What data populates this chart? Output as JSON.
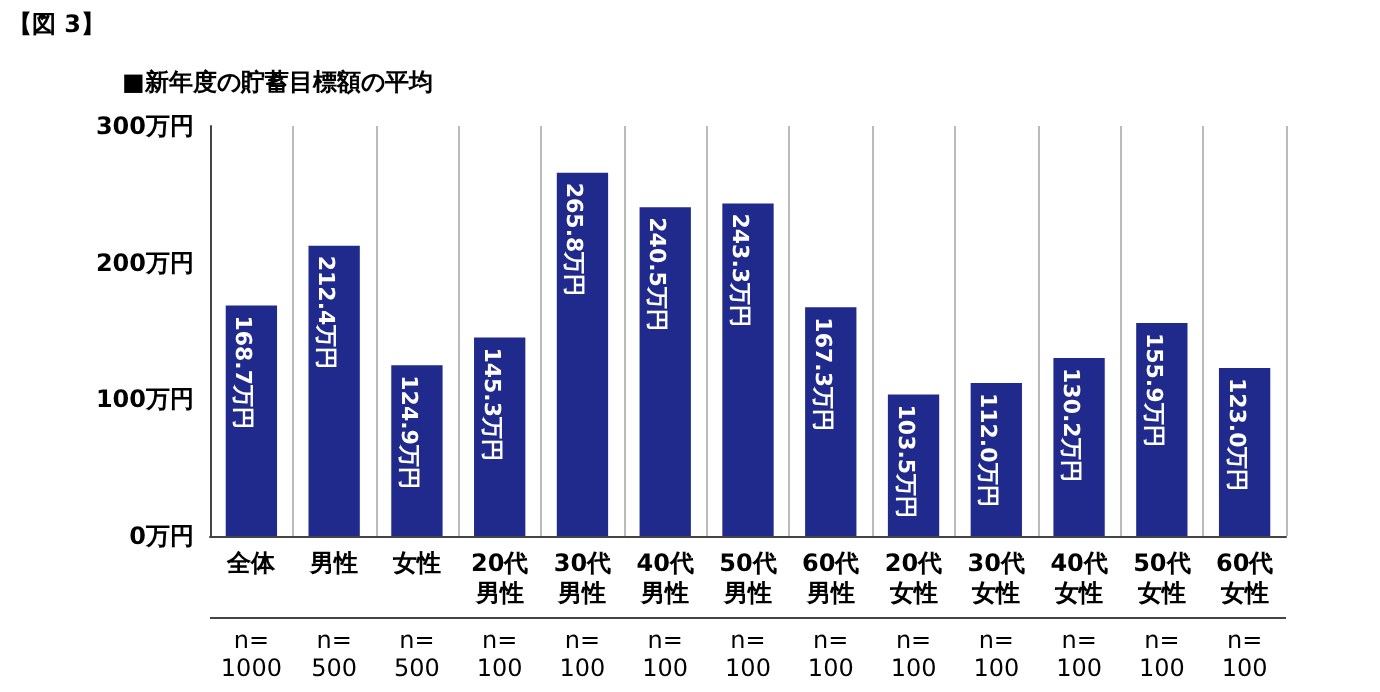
{
  "chart_data": {
    "type": "bar",
    "title": "■新年度の貯蓄目標額の平均",
    "categories": [
      "全体",
      "男性",
      "女性",
      "20代男性",
      "30代男性",
      "40代男性",
      "50代男性",
      "60代男性",
      "20代女性",
      "30代女性",
      "40代女性",
      "50代女性",
      "60代女性"
    ],
    "values": [
      168.7,
      212.4,
      124.9,
      145.3,
      265.8,
      240.5,
      243.3,
      167.3,
      103.5,
      112.0,
      130.2,
      155.9,
      123.0
    ],
    "value_labels": [
      "168.7万円",
      "212.4万円",
      "124.9万円",
      "145.3万円",
      "265.8万円",
      "240.5万円",
      "243.3万円",
      "167.3万円",
      "103.5万円",
      "112.0万円",
      "130.2万円",
      "155.9万円",
      "123.0万円"
    ],
    "color": "#1f2a8c",
    "ylim": [
      0,
      300
    ],
    "yticks": [
      {
        "value": 0,
        "label": "0万円"
      },
      {
        "value": 100,
        "label": "100万円"
      },
      {
        "value": 200,
        "label": "200万円"
      },
      {
        "value": 300,
        "label": "300万円"
      }
    ],
    "grid": "x",
    "annotations": [
      "【図 3】",
      "n= 1000",
      "n= 500",
      "n= 500",
      "n= 100",
      "n= 100",
      "n= 100",
      "n= 100",
      "n= 100",
      "n= 100",
      "n= 100",
      "n= 100",
      "n= 100",
      "n= 100"
    ]
  }
}
